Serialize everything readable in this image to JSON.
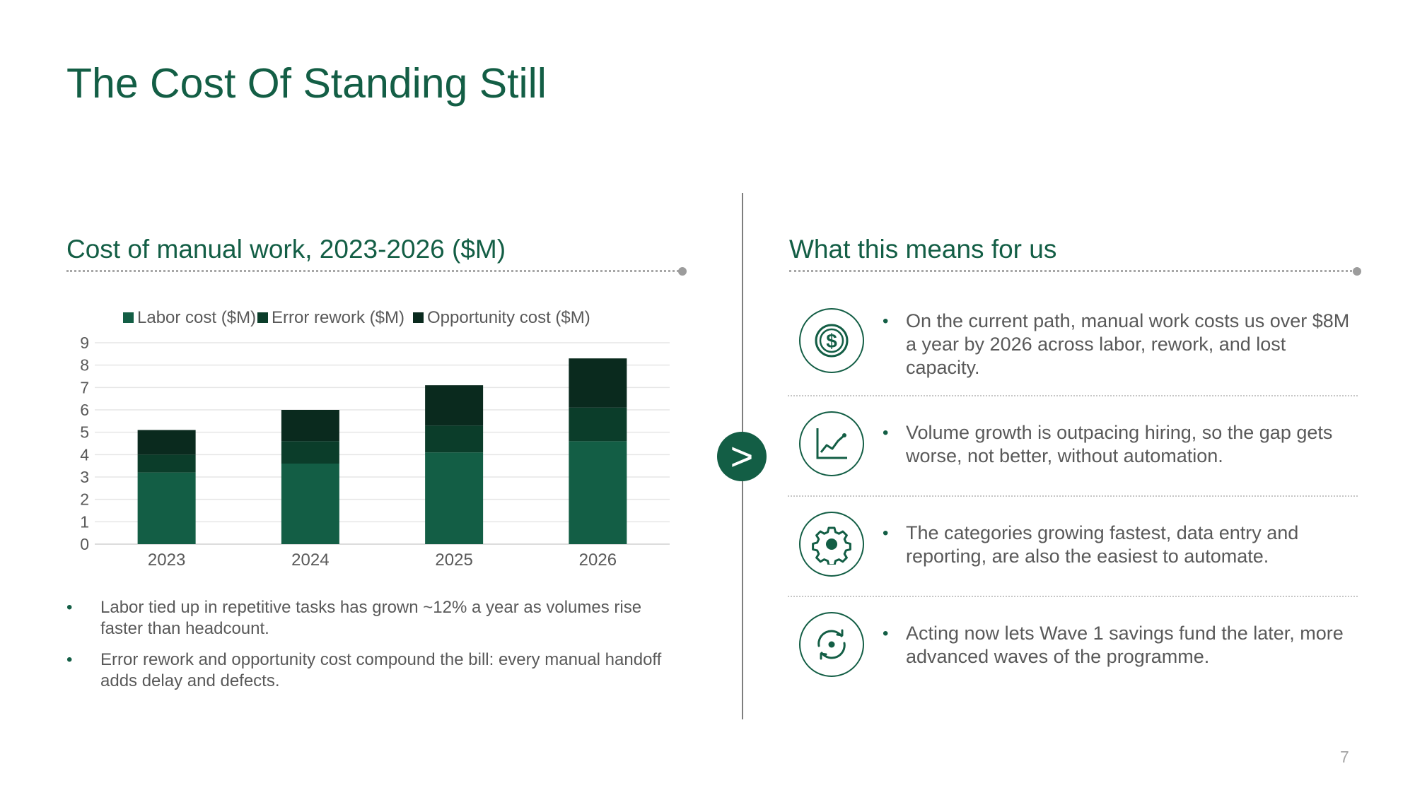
{
  "slide": {
    "title": "The Cost Of Standing Still",
    "page_number": "7"
  },
  "left": {
    "title": "Cost of manual work, 2023-2026 ($M)",
    "bullets": [
      "Labor tied up in repetitive tasks has grown ~12% a year as volumes rise faster than headcount.",
      "Error rework and opportunity cost compound the bill: every manual handoff adds delay and defects."
    ]
  },
  "right": {
    "title": "What this means for us",
    "items": [
      {
        "icon": "dollar-icon",
        "text": "On the current path, manual work costs us over $8M a year by 2026 across labor, rework, and lost capacity."
      },
      {
        "icon": "trend-chart-icon",
        "text": "Volume growth is outpacing hiring, so the gap gets worse, not better, without automation."
      },
      {
        "icon": "gear-icon",
        "text": "The categories growing fastest, data entry and reporting, are also the easiest to automate."
      },
      {
        "icon": "refresh-icon",
        "text": "Acting now lets Wave 1 savings fund the later, more advanced waves of the programme."
      }
    ]
  },
  "divider_badge": {
    "icon": "chevron-right-icon",
    "glyph": ">"
  },
  "colors": {
    "accent": "#135e45",
    "series": [
      "#135e45",
      "#0b3d2a",
      "#0a2a1e"
    ]
  },
  "chart_data": {
    "type": "bar",
    "stacked": true,
    "categories": [
      "2023",
      "2024",
      "2025",
      "2026"
    ],
    "series": [
      {
        "name": "Labor cost ($M)",
        "values": [
          3.2,
          3.6,
          4.1,
          4.6
        ]
      },
      {
        "name": "Error rework ($M)",
        "values": [
          0.8,
          1.0,
          1.2,
          1.5
        ]
      },
      {
        "name": "Opportunity cost ($M)",
        "values": [
          1.1,
          1.4,
          1.8,
          2.2
        ]
      }
    ],
    "ylim": [
      0,
      9
    ],
    "yticks": [
      0,
      1,
      2,
      3,
      4,
      5,
      6,
      7,
      8,
      9
    ],
    "grid": true,
    "legend": "top"
  }
}
